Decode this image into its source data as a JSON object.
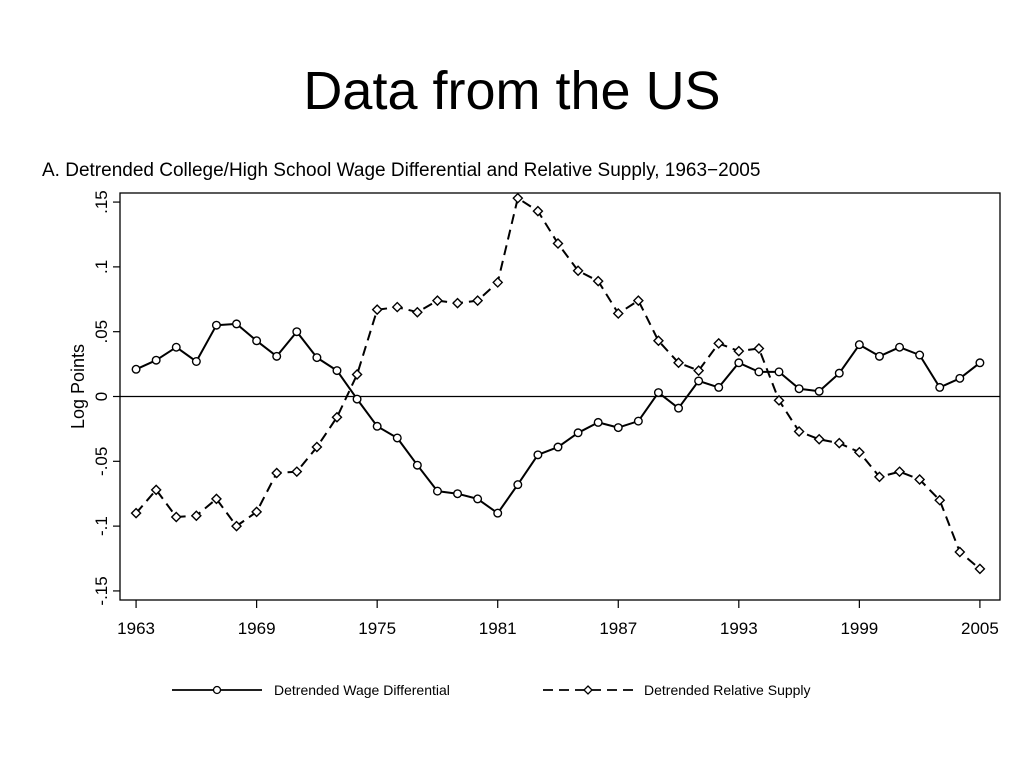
{
  "slide": {
    "title": "Data from the US"
  },
  "chart_data": {
    "type": "line",
    "title": "A. Detrended College/High School Wage Differential and Relative Supply, 1963−2005",
    "xlabel": "",
    "ylabel": "Log Points",
    "xlim": [
      1963,
      2005
    ],
    "ylim": [
      -0.15,
      0.15
    ],
    "xticks": [
      1963,
      1969,
      1975,
      1981,
      1987,
      1993,
      1999,
      2005
    ],
    "yticks": [
      {
        "value": 0.15,
        "label": ".15"
      },
      {
        "value": 0.1,
        "label": ".1"
      },
      {
        "value": 0.05,
        "label": ".05"
      },
      {
        "value": 0,
        "label": "0"
      },
      {
        "value": -0.05,
        "label": "-.05"
      },
      {
        "value": -0.1,
        "label": "-.1"
      },
      {
        "value": -0.15,
        "label": "-.15"
      }
    ],
    "grid": false,
    "zero_line": true,
    "legend_position": "bottom",
    "x": [
      1963,
      1964,
      1965,
      1966,
      1967,
      1968,
      1969,
      1970,
      1971,
      1972,
      1973,
      1974,
      1975,
      1976,
      1977,
      1978,
      1979,
      1980,
      1981,
      1982,
      1983,
      1984,
      1985,
      1986,
      1987,
      1988,
      1989,
      1990,
      1991,
      1992,
      1993,
      1994,
      1995,
      1996,
      1997,
      1998,
      1999,
      2000,
      2001,
      2002,
      2003,
      2004,
      2005
    ],
    "series": [
      {
        "name": "Detrended Wage Differential",
        "style": "solid",
        "color": "#000000",
        "values": [
          0.021,
          0.028,
          0.038,
          0.027,
          0.055,
          0.056,
          0.043,
          0.031,
          0.05,
          0.03,
          0.02,
          -0.002,
          -0.023,
          -0.032,
          -0.053,
          -0.073,
          -0.075,
          -0.079,
          -0.09,
          -0.068,
          -0.045,
          -0.039,
          -0.028,
          -0.02,
          -0.024,
          -0.019,
          0.003,
          -0.009,
          0.012,
          0.007,
          0.026,
          0.019,
          0.019,
          0.006,
          0.004,
          0.018,
          0.04,
          0.031,
          0.038,
          0.032,
          0.007,
          0.014,
          0.026
        ]
      },
      {
        "name": "Detrended Relative Supply",
        "style": "dashed",
        "color": "#000000",
        "values": [
          -0.09,
          -0.072,
          -0.093,
          -0.092,
          -0.079,
          -0.1,
          -0.089,
          -0.059,
          -0.058,
          -0.039,
          -0.016,
          0.017,
          0.067,
          0.069,
          0.065,
          0.074,
          0.072,
          0.074,
          0.088,
          0.153,
          0.143,
          0.118,
          0.097,
          0.089,
          0.064,
          0.074,
          0.043,
          0.026,
          0.02,
          0.041,
          0.035,
          0.037,
          -0.003,
          -0.027,
          -0.033,
          -0.036,
          -0.043,
          -0.062,
          -0.058,
          -0.064,
          -0.08,
          -0.12,
          -0.133
        ]
      }
    ]
  }
}
